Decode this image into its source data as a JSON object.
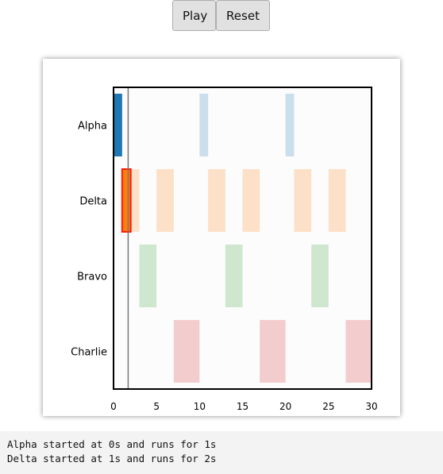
{
  "toolbar": {
    "play_label": "Play",
    "reset_label": "Reset"
  },
  "log": {
    "lines": [
      "Alpha started at 0s and runs for 1s",
      "Delta started at 1s and runs for 2s"
    ]
  },
  "chart_data": {
    "type": "timeline",
    "xlim": [
      0,
      30
    ],
    "xticks": [
      0,
      5,
      10,
      15,
      20,
      25,
      30
    ],
    "current_time": 1.7,
    "rows": [
      {
        "name": "Alpha",
        "color": "#1f77b4",
        "intervals": [
          {
            "start": 0,
            "end": 1,
            "state": "active"
          },
          {
            "start": 10,
            "end": 11,
            "state": "pending"
          },
          {
            "start": 20,
            "end": 21,
            "state": "pending"
          }
        ]
      },
      {
        "name": "Delta",
        "color": "#ff7f0e",
        "intervals": [
          {
            "start": 1,
            "end": 2,
            "state": "active"
          },
          {
            "start": 1,
            "end": 3,
            "state": "pending"
          },
          {
            "start": 5,
            "end": 7,
            "state": "pending"
          },
          {
            "start": 11,
            "end": 13,
            "state": "pending"
          },
          {
            "start": 15,
            "end": 17,
            "state": "pending"
          },
          {
            "start": 21,
            "end": 23,
            "state": "pending"
          },
          {
            "start": 25,
            "end": 27,
            "state": "pending"
          }
        ]
      },
      {
        "name": "Bravo",
        "color": "#2ca02c",
        "intervals": [
          {
            "start": 3,
            "end": 5,
            "state": "pending"
          },
          {
            "start": 13,
            "end": 15,
            "state": "pending"
          },
          {
            "start": 23,
            "end": 25,
            "state": "pending"
          }
        ]
      },
      {
        "name": "Charlie",
        "color": "#d62728",
        "intervals": [
          {
            "start": 7,
            "end": 10,
            "state": "pending"
          },
          {
            "start": 17,
            "end": 20,
            "state": "pending"
          },
          {
            "start": 27,
            "end": 30,
            "state": "pending"
          }
        ]
      }
    ]
  }
}
